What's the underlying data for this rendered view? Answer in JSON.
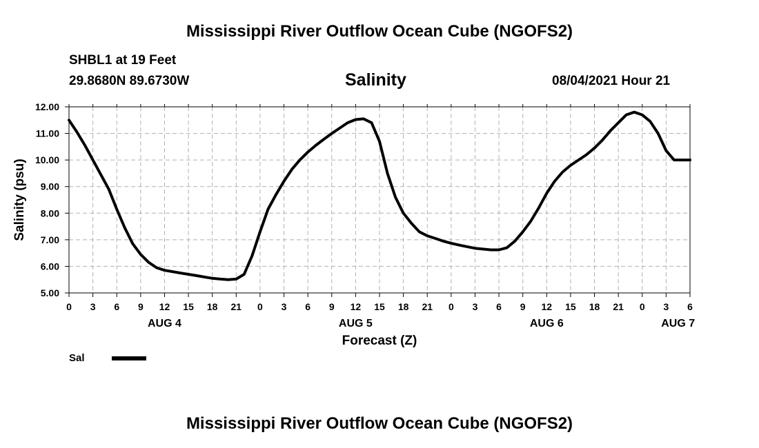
{
  "header": {
    "title_top": "Mississippi River Outflow Ocean Cube (NGOFS2)",
    "title_bottom": "Mississippi River Outflow Ocean Cube (NGOFS2)",
    "station": "SHBL1 at 19 Feet",
    "coords": "29.8680N  89.6730W",
    "variable": "Salinity",
    "timestamp": "08/04/2021 Hour 21"
  },
  "chart_data": {
    "type": "line",
    "title": "Salinity",
    "xlabel": "Forecast (Z)",
    "ylabel": "Salinity (psu)",
    "xlim": [
      0,
      78
    ],
    "ylim": [
      5.0,
      12.0
    ],
    "y_ticks": [
      "5.00",
      "6.00",
      "7.00",
      "8.00",
      "9.00",
      "10.00",
      "11.00",
      "12.00"
    ],
    "x_ticks": [
      "0",
      "3",
      "6",
      "9",
      "12",
      "15",
      "18",
      "21",
      "0",
      "3",
      "6",
      "9",
      "12",
      "15",
      "18",
      "21",
      "0",
      "3",
      "6",
      "9",
      "12",
      "15",
      "18",
      "21",
      "0",
      "3",
      "6"
    ],
    "date_labels": [
      {
        "label": "AUG 4",
        "hour": 12
      },
      {
        "label": "AUG 5",
        "hour": 36
      },
      {
        "label": "AUG 6",
        "hour": 60
      },
      {
        "label": "AUG 7",
        "hour": 76.5
      }
    ],
    "grid": true,
    "legend": {
      "label": "Sal",
      "position": "bottom-left"
    },
    "series": [
      {
        "name": "Sal",
        "x": [
          0,
          1,
          2,
          3,
          4,
          5,
          6,
          7,
          8,
          9,
          10,
          11,
          12,
          13,
          14,
          15,
          16,
          17,
          18,
          19,
          20,
          21,
          22,
          23,
          24,
          25,
          26,
          27,
          28,
          29,
          30,
          31,
          32,
          33,
          34,
          35,
          36,
          37,
          38,
          39,
          40,
          41,
          42,
          43,
          44,
          45,
          46,
          47,
          48,
          49,
          50,
          51,
          52,
          53,
          54,
          55,
          56,
          57,
          58,
          59,
          60,
          61,
          62,
          63,
          64,
          65,
          66,
          67,
          68,
          69,
          70,
          71,
          72,
          73,
          74,
          75,
          76,
          77,
          78
        ],
        "values": [
          11.5,
          11.05,
          10.55,
          10.0,
          9.45,
          8.9,
          8.15,
          7.45,
          6.85,
          6.45,
          6.15,
          5.95,
          5.85,
          5.8,
          5.75,
          5.7,
          5.65,
          5.6,
          5.55,
          5.52,
          5.5,
          5.52,
          5.7,
          6.4,
          7.3,
          8.15,
          8.7,
          9.2,
          9.65,
          10.0,
          10.3,
          10.55,
          10.78,
          11.0,
          11.2,
          11.4,
          11.52,
          11.55,
          11.4,
          10.7,
          9.5,
          8.6,
          8.0,
          7.62,
          7.3,
          7.15,
          7.05,
          6.95,
          6.87,
          6.8,
          6.74,
          6.68,
          6.65,
          6.62,
          6.62,
          6.7,
          6.95,
          7.3,
          7.7,
          8.2,
          8.75,
          9.2,
          9.55,
          9.8,
          10.0,
          10.2,
          10.45,
          10.75,
          11.1,
          11.4,
          11.7,
          11.8,
          11.7,
          11.45,
          11.0,
          10.35,
          10.0,
          10.0,
          10.0
        ]
      }
    ]
  }
}
